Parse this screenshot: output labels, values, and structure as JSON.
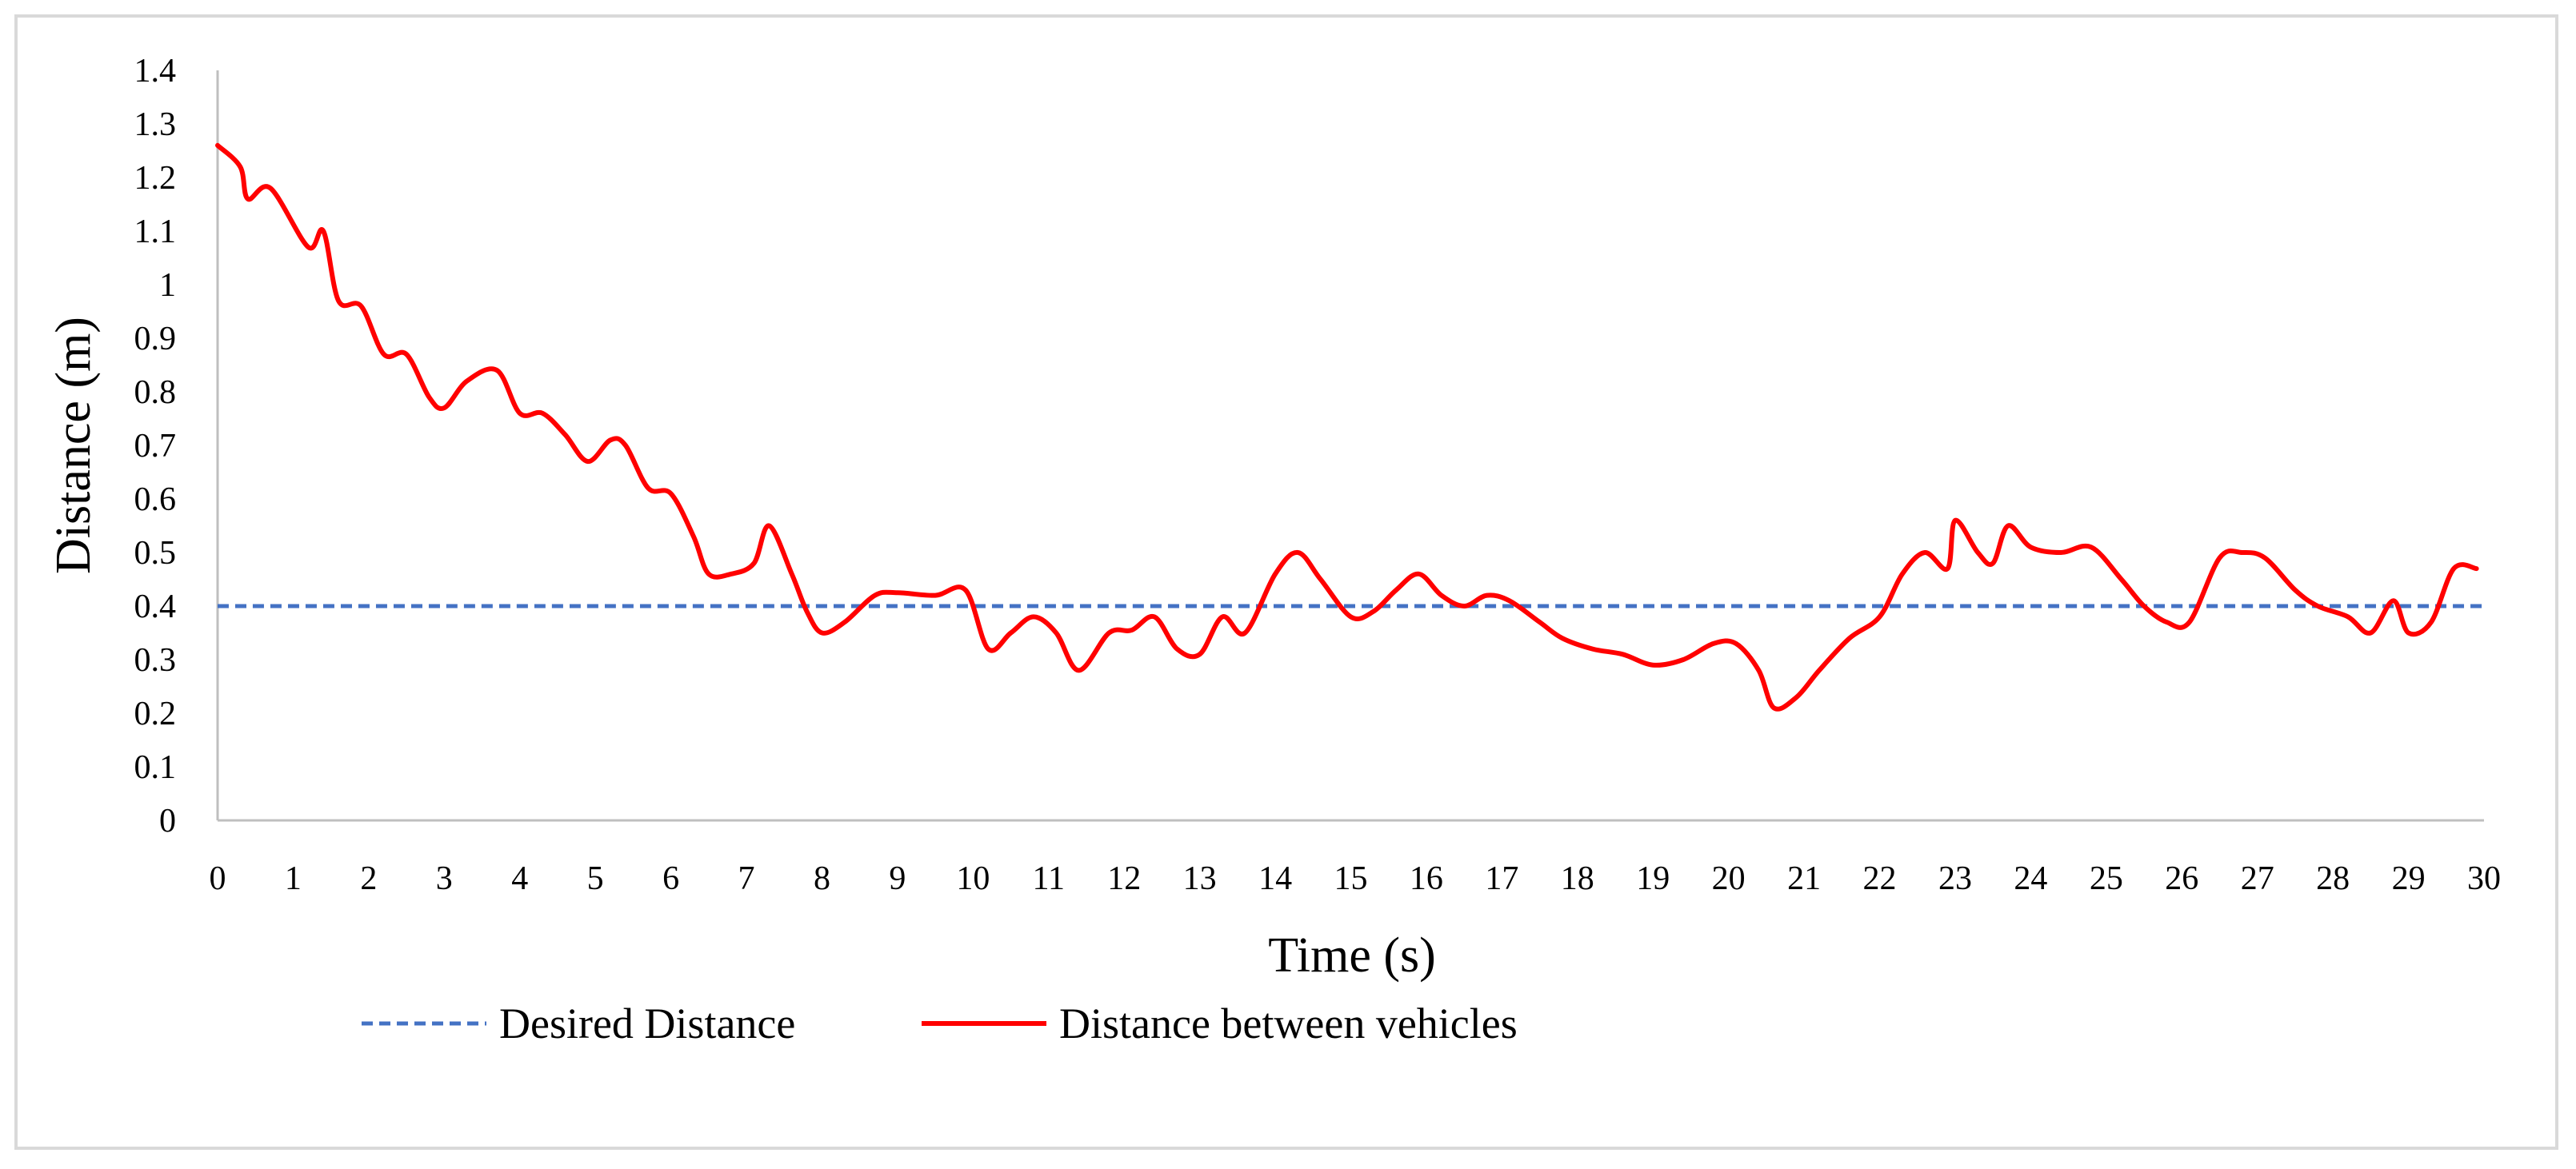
{
  "chart_data": {
    "type": "line",
    "title": "",
    "xlabel": "Time (s)",
    "ylabel": "Distance (m)",
    "xlim": [
      0,
      30
    ],
    "ylim": [
      0,
      1.4
    ],
    "x_ticks": [
      "0",
      "1",
      "2",
      "3",
      "4",
      "5",
      "6",
      "7",
      "8",
      "9",
      "10",
      "11",
      "12",
      "13",
      "14",
      "15",
      "16",
      "17",
      "18",
      "19",
      "20",
      "21",
      "22",
      "23",
      "24",
      "25",
      "26",
      "27",
      "28",
      "29",
      "30"
    ],
    "y_ticks": [
      "0",
      "0.1",
      "0.2",
      "0.3",
      "0.4",
      "0.5",
      "0.6",
      "0.7",
      "0.8",
      "0.9",
      "1",
      "1.1",
      "1.2",
      "1.3",
      "1.4"
    ],
    "grid": false,
    "legend_position": "bottom",
    "series": [
      {
        "name": "Desired Distance",
        "color": "#4472c4",
        "style": "dashed",
        "x": [
          0,
          30
        ],
        "y": [
          0.4,
          0.4
        ]
      },
      {
        "name": "Distance between vehicles",
        "color": "#ff0000",
        "style": "solid",
        "x": [
          0,
          0.3,
          0.4,
          0.7,
          1.2,
          1.4,
          1.6,
          1.9,
          2.2,
          2.5,
          2.8,
          3.0,
          3.3,
          3.7,
          4.0,
          4.3,
          4.6,
          4.9,
          5.2,
          5.4,
          5.7,
          6.0,
          6.3,
          6.5,
          6.8,
          7.1,
          7.3,
          7.6,
          7.8,
          8.0,
          8.3,
          8.7,
          9.0,
          9.5,
          9.9,
          10.2,
          10.5,
          10.8,
          11.1,
          11.4,
          11.8,
          12.1,
          12.4,
          12.7,
          13.0,
          13.3,
          13.6,
          14.0,
          14.3,
          14.6,
          15.0,
          15.3,
          15.6,
          15.9,
          16.2,
          16.5,
          16.8,
          17.1,
          17.5,
          17.8,
          18.2,
          18.6,
          19.0,
          19.4,
          19.8,
          20.1,
          20.4,
          20.6,
          20.9,
          21.2,
          21.6,
          22.0,
          22.3,
          22.6,
          22.9,
          23.0,
          23.3,
          23.5,
          23.7,
          24.0,
          24.4,
          24.8,
          25.2,
          25.5,
          25.8,
          26.1,
          26.5,
          26.8,
          27.1,
          27.5,
          27.8,
          28.2,
          28.5,
          28.8,
          29.0,
          29.3,
          29.6,
          29.9
        ],
        "y": [
          1.26,
          1.22,
          1.16,
          1.18,
          1.07,
          1.1,
          0.97,
          0.96,
          0.87,
          0.87,
          0.79,
          0.77,
          0.82,
          0.84,
          0.76,
          0.76,
          0.72,
          0.67,
          0.71,
          0.7,
          0.62,
          0.61,
          0.53,
          0.46,
          0.46,
          0.48,
          0.55,
          0.46,
          0.39,
          0.35,
          0.37,
          0.42,
          0.425,
          0.42,
          0.43,
          0.32,
          0.35,
          0.38,
          0.35,
          0.28,
          0.35,
          0.355,
          0.38,
          0.32,
          0.31,
          0.38,
          0.35,
          0.46,
          0.5,
          0.45,
          0.38,
          0.39,
          0.43,
          0.46,
          0.42,
          0.4,
          0.42,
          0.41,
          0.37,
          0.34,
          0.32,
          0.31,
          0.29,
          0.3,
          0.33,
          0.33,
          0.28,
          0.21,
          0.23,
          0.28,
          0.34,
          0.38,
          0.46,
          0.5,
          0.47,
          0.56,
          0.5,
          0.48,
          0.55,
          0.51,
          0.5,
          0.51,
          0.45,
          0.4,
          0.37,
          0.37,
          0.49,
          0.5,
          0.49,
          0.43,
          0.4,
          0.38,
          0.35,
          0.41,
          0.35,
          0.37,
          0.47,
          0.47
        ]
      }
    ]
  }
}
